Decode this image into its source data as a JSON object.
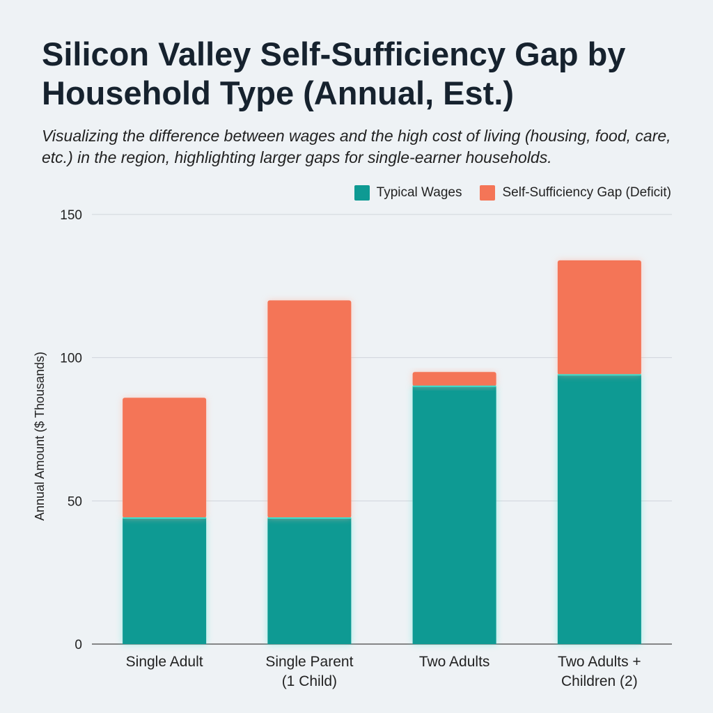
{
  "chart_data": {
    "type": "bar",
    "stacked": true,
    "title": "Silicon Valley Self-Sufficiency Gap by Household Type (Annual, Est.)",
    "subtitle": "Visualizing the difference between wages and the high cost of living (housing, food, care, etc.) in the region, highlighting larger gaps for single-earner households.",
    "xlabel": "",
    "ylabel": "Annual Amount ($ Thousands)",
    "ylim": [
      0,
      150
    ],
    "yticks": [
      0,
      50,
      100,
      150
    ],
    "grid": true,
    "legend_position": "top-right",
    "categories": [
      "Single Adult",
      "Single Parent\n(1 Child)",
      "Two Adults",
      "Two Adults +\nChildren (2)"
    ],
    "series": [
      {
        "name": "Typical Wages",
        "color": "#0e9a93",
        "values": [
          44,
          44,
          90,
          94
        ]
      },
      {
        "name": "Self-Sufficiency Gap (Deficit)",
        "color": "#f47557",
        "values": [
          42,
          76,
          5,
          40
        ]
      }
    ]
  }
}
